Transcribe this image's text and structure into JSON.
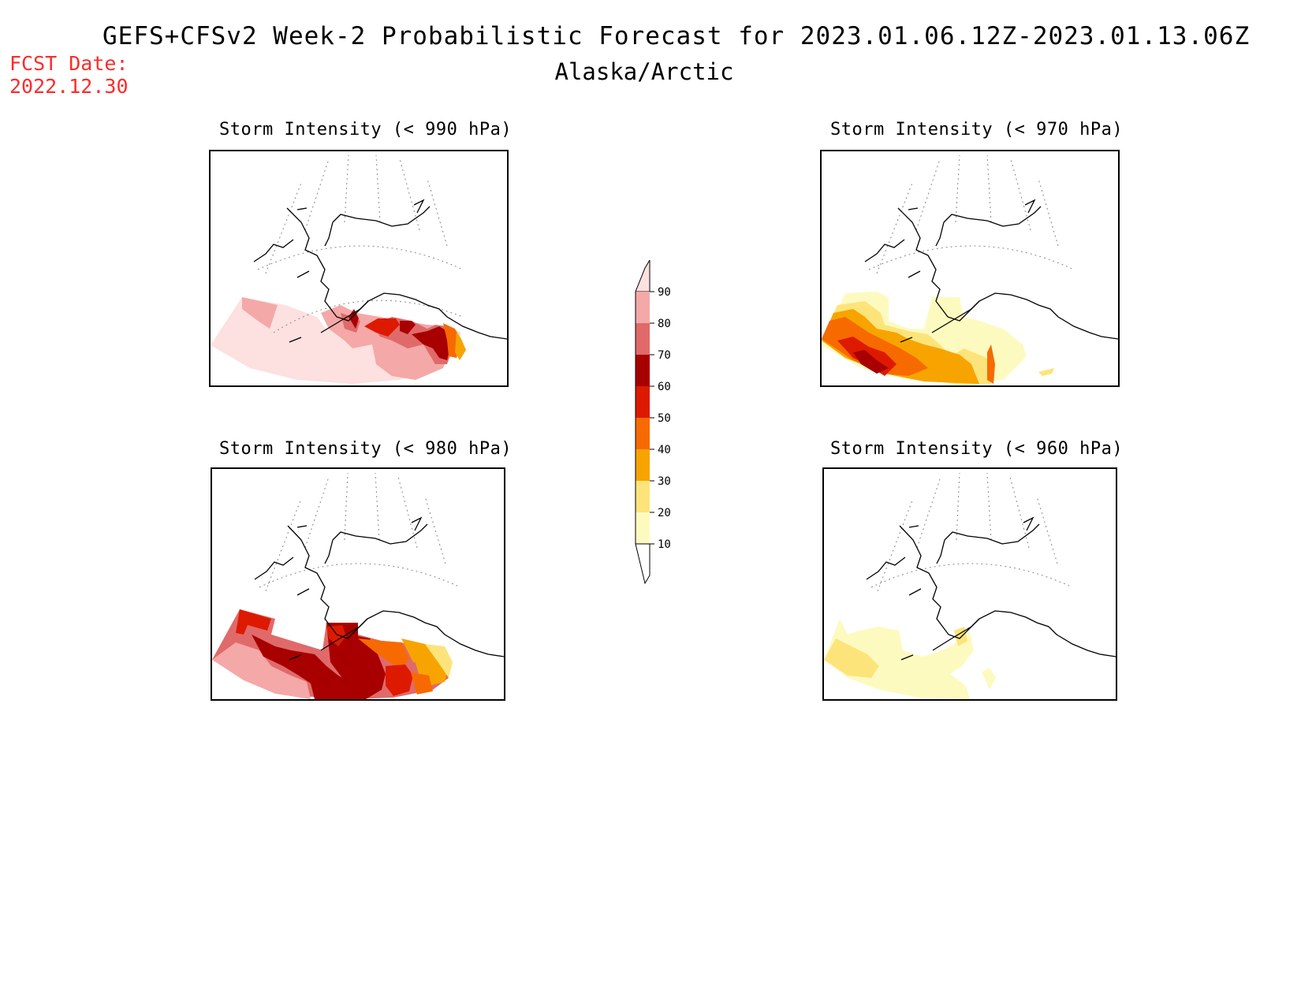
{
  "header": {
    "title": "GEFS+CFSv2 Week-2 Probabilistic Forecast for 2023.01.06.12Z-2023.01.13.06Z",
    "subtitle": "Alaska/Arctic",
    "fcst_label": "FCST Date:",
    "fcst_date": "2022.12.30"
  },
  "panels": [
    {
      "id": "p990",
      "title": "Storm Intensity (< 990 hPa)"
    },
    {
      "id": "p970",
      "title": "Storm Intensity (< 970 hPa)"
    },
    {
      "id": "p980",
      "title": "Storm Intensity (< 980 hPa)"
    },
    {
      "id": "p960",
      "title": "Storm Intensity (< 960 hPa)"
    }
  ],
  "colorbar": {
    "levels": [
      "90",
      "80",
      "70",
      "60",
      "50",
      "40",
      "30",
      "20",
      "10"
    ],
    "colors": {
      "above90": "#fde0e0",
      "80_90": "#f4a8a8",
      "70_80": "#e06a6a",
      "60_70": "#a80000",
      "50_60": "#dd1a00",
      "40_50": "#f76a00",
      "30_40": "#f7a400",
      "20_30": "#fde47a",
      "10_20": "#fdfac0"
    }
  }
}
